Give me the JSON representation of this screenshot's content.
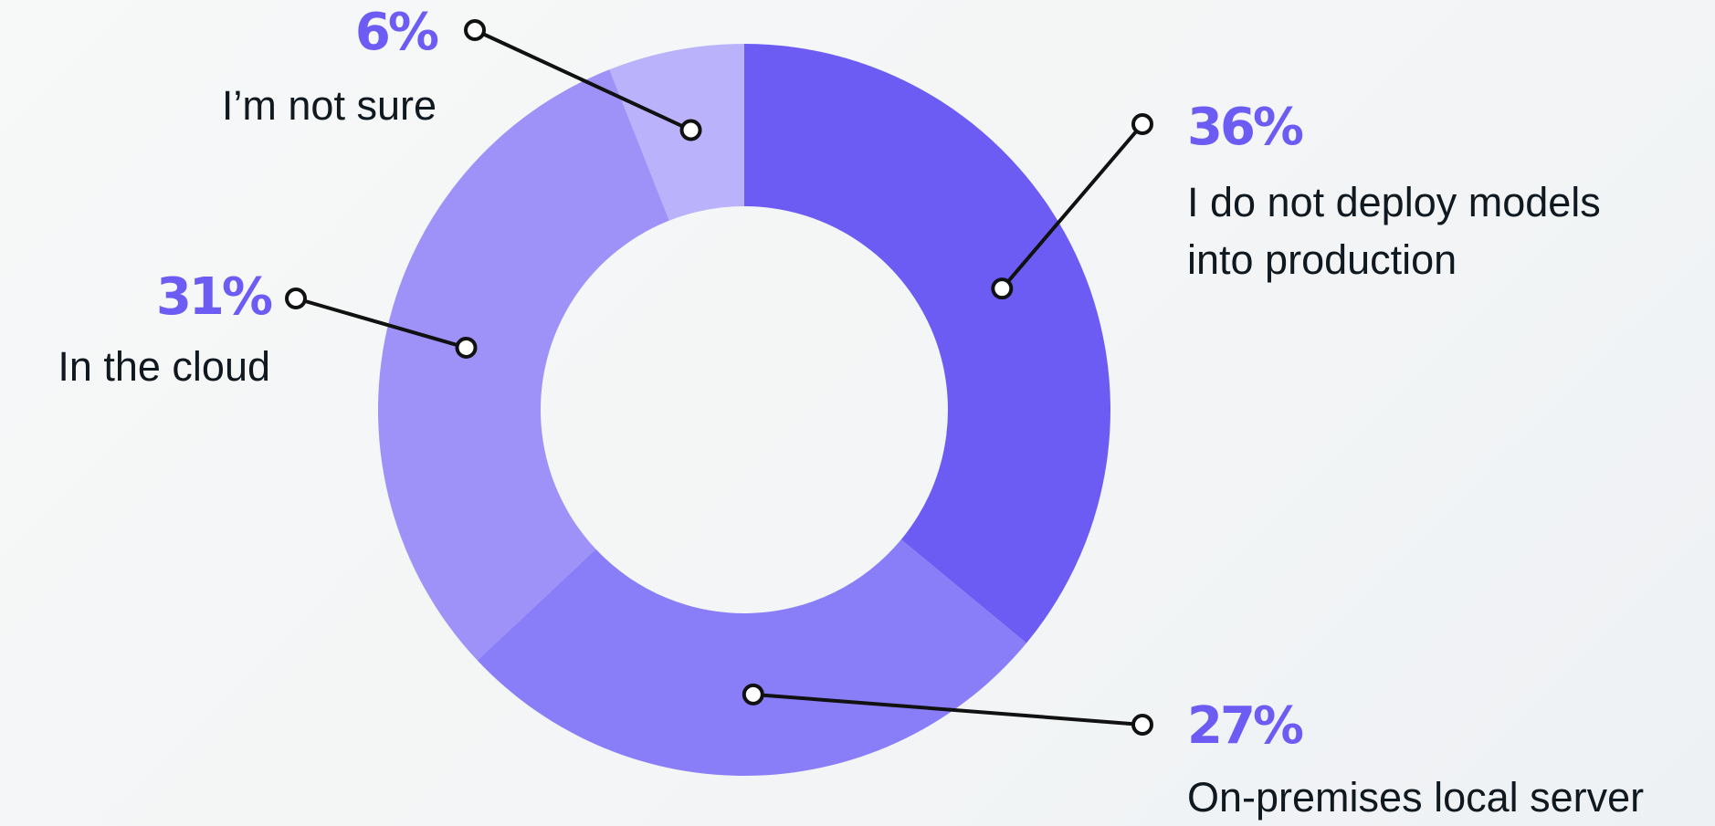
{
  "chart_data": {
    "type": "pie",
    "variant": "donut",
    "title": "",
    "slices": [
      {
        "pct_label": "36%",
        "value": 36,
        "label_lines": [
          "I do not deploy models",
          "into production"
        ],
        "color": "#6c5cf4",
        "side": "right"
      },
      {
        "pct_label": "27%",
        "value": 27,
        "label_lines": [
          "On-premises local server"
        ],
        "color": "#8a7ef8",
        "side": "right"
      },
      {
        "pct_label": "31%",
        "value": 31,
        "label_lines": [
          "In the cloud"
        ],
        "color": "#9e92f9",
        "side": "left"
      },
      {
        "pct_label": "6%",
        "value": 6,
        "label_lines": [
          "I’m not sure"
        ],
        "color": "#bab2fb",
        "side": "left"
      }
    ],
    "start_position": "top",
    "direction": "clockwise",
    "legend": "none",
    "colors": {
      "percent_text": "#6c5cf4",
      "label_text": "#101820",
      "leader_line": "#111111"
    }
  }
}
